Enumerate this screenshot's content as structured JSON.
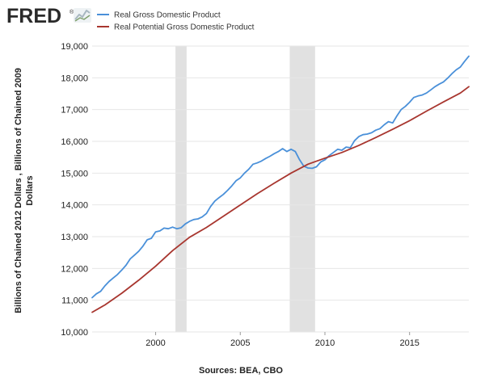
{
  "logo": {
    "text": "FRED",
    "mark": "®"
  },
  "colors": {
    "background": "#ffffff",
    "plot_background": "#ffffff",
    "grid": "#e6e6e6",
    "recession": "#e1e1e1",
    "logo": "#2a2a2a",
    "logo_icon": "#a8b7c0",
    "series_gdp": "#4a90d9",
    "series_potential": "#a8362f"
  },
  "chart_data": {
    "type": "line",
    "title": "",
    "xlabel": "",
    "ylabel": "Billions of Chained 2012 Dollars , Billions of Chained 2009 Dollars",
    "ylabel_lines": [
      "Billions of Chained 2012 Dollars , Billions of Chained 2009",
      "Dollars"
    ],
    "source": "Sources: BEA, CBO",
    "xlim": [
      1996.25,
      2018.5
    ],
    "ylim": [
      10000,
      19000
    ],
    "x_ticks": [
      2000,
      2005,
      2010,
      2015
    ],
    "x_tick_labels": [
      "2000",
      "2005",
      "2010",
      "2015"
    ],
    "y_ticks": [
      10000,
      11000,
      12000,
      13000,
      14000,
      15000,
      16000,
      17000,
      18000,
      19000
    ],
    "y_tick_labels": [
      "10,000",
      "11,000",
      "12,000",
      "13,000",
      "14,000",
      "15,000",
      "16,000",
      "17,000",
      "18,000",
      "19,000"
    ],
    "grid": true,
    "legend_position": "top-left",
    "recessions": [
      [
        2001.17,
        2001.83
      ],
      [
        2007.92,
        2009.42
      ]
    ],
    "series": [
      {
        "name": "Real Gross Domestic Product",
        "color": "#4a90d9",
        "points": [
          [
            1996.25,
            11080
          ],
          [
            1996.5,
            11200
          ],
          [
            1996.75,
            11280
          ],
          [
            1997.0,
            11450
          ],
          [
            1997.25,
            11590
          ],
          [
            1997.5,
            11700
          ],
          [
            1997.75,
            11810
          ],
          [
            1998.0,
            11950
          ],
          [
            1998.25,
            12100
          ],
          [
            1998.5,
            12300
          ],
          [
            1998.75,
            12420
          ],
          [
            1999.0,
            12540
          ],
          [
            1999.25,
            12700
          ],
          [
            1999.5,
            12900
          ],
          [
            1999.75,
            12950
          ],
          [
            2000.0,
            13150
          ],
          [
            2000.25,
            13180
          ],
          [
            2000.5,
            13270
          ],
          [
            2000.75,
            13250
          ],
          [
            2001.0,
            13300
          ],
          [
            2001.25,
            13250
          ],
          [
            2001.5,
            13280
          ],
          [
            2001.75,
            13400
          ],
          [
            2002.0,
            13480
          ],
          [
            2002.25,
            13540
          ],
          [
            2002.5,
            13560
          ],
          [
            2002.75,
            13620
          ],
          [
            2003.0,
            13730
          ],
          [
            2003.25,
            13950
          ],
          [
            2003.5,
            14120
          ],
          [
            2003.75,
            14230
          ],
          [
            2004.0,
            14330
          ],
          [
            2004.25,
            14460
          ],
          [
            2004.5,
            14600
          ],
          [
            2004.75,
            14760
          ],
          [
            2005.0,
            14850
          ],
          [
            2005.25,
            15000
          ],
          [
            2005.5,
            15120
          ],
          [
            2005.75,
            15280
          ],
          [
            2006.0,
            15320
          ],
          [
            2006.25,
            15380
          ],
          [
            2006.5,
            15460
          ],
          [
            2006.75,
            15530
          ],
          [
            2007.0,
            15610
          ],
          [
            2007.25,
            15680
          ],
          [
            2007.5,
            15770
          ],
          [
            2007.75,
            15680
          ],
          [
            2008.0,
            15750
          ],
          [
            2008.25,
            15680
          ],
          [
            2008.5,
            15420
          ],
          [
            2008.75,
            15220
          ],
          [
            2009.0,
            15160
          ],
          [
            2009.25,
            15150
          ],
          [
            2009.5,
            15200
          ],
          [
            2009.75,
            15350
          ],
          [
            2010.0,
            15420
          ],
          [
            2010.25,
            15550
          ],
          [
            2010.5,
            15650
          ],
          [
            2010.75,
            15750
          ],
          [
            2011.0,
            15720
          ],
          [
            2011.25,
            15820
          ],
          [
            2011.5,
            15800
          ],
          [
            2011.75,
            16020
          ],
          [
            2012.0,
            16150
          ],
          [
            2012.25,
            16210
          ],
          [
            2012.5,
            16230
          ],
          [
            2012.75,
            16270
          ],
          [
            2013.0,
            16350
          ],
          [
            2013.25,
            16400
          ],
          [
            2013.5,
            16520
          ],
          [
            2013.75,
            16620
          ],
          [
            2014.0,
            16580
          ],
          [
            2014.25,
            16800
          ],
          [
            2014.5,
            17000
          ],
          [
            2014.75,
            17100
          ],
          [
            2015.0,
            17230
          ],
          [
            2015.25,
            17380
          ],
          [
            2015.5,
            17430
          ],
          [
            2015.75,
            17460
          ],
          [
            2016.0,
            17520
          ],
          [
            2016.25,
            17620
          ],
          [
            2016.5,
            17720
          ],
          [
            2016.75,
            17800
          ],
          [
            2017.0,
            17870
          ],
          [
            2017.25,
            17990
          ],
          [
            2017.5,
            18130
          ],
          [
            2017.75,
            18250
          ],
          [
            2018.0,
            18340
          ],
          [
            2018.25,
            18520
          ],
          [
            2018.5,
            18680
          ]
        ]
      },
      {
        "name": "Real Potential Gross Domestic Product",
        "color": "#a8362f",
        "points": [
          [
            1996.25,
            10620
          ],
          [
            1997.0,
            10850
          ],
          [
            1998.0,
            11220
          ],
          [
            1999.0,
            11630
          ],
          [
            2000.0,
            12070
          ],
          [
            2001.0,
            12560
          ],
          [
            2002.0,
            12980
          ],
          [
            2003.0,
            13290
          ],
          [
            2004.0,
            13640
          ],
          [
            2005.0,
            14000
          ],
          [
            2006.0,
            14350
          ],
          [
            2007.0,
            14680
          ],
          [
            2008.0,
            15000
          ],
          [
            2009.0,
            15280
          ],
          [
            2010.0,
            15470
          ],
          [
            2011.0,
            15650
          ],
          [
            2012.0,
            15870
          ],
          [
            2013.0,
            16120
          ],
          [
            2014.0,
            16380
          ],
          [
            2015.0,
            16650
          ],
          [
            2016.0,
            16950
          ],
          [
            2017.0,
            17240
          ],
          [
            2018.0,
            17520
          ],
          [
            2018.5,
            17720
          ]
        ]
      }
    ]
  }
}
